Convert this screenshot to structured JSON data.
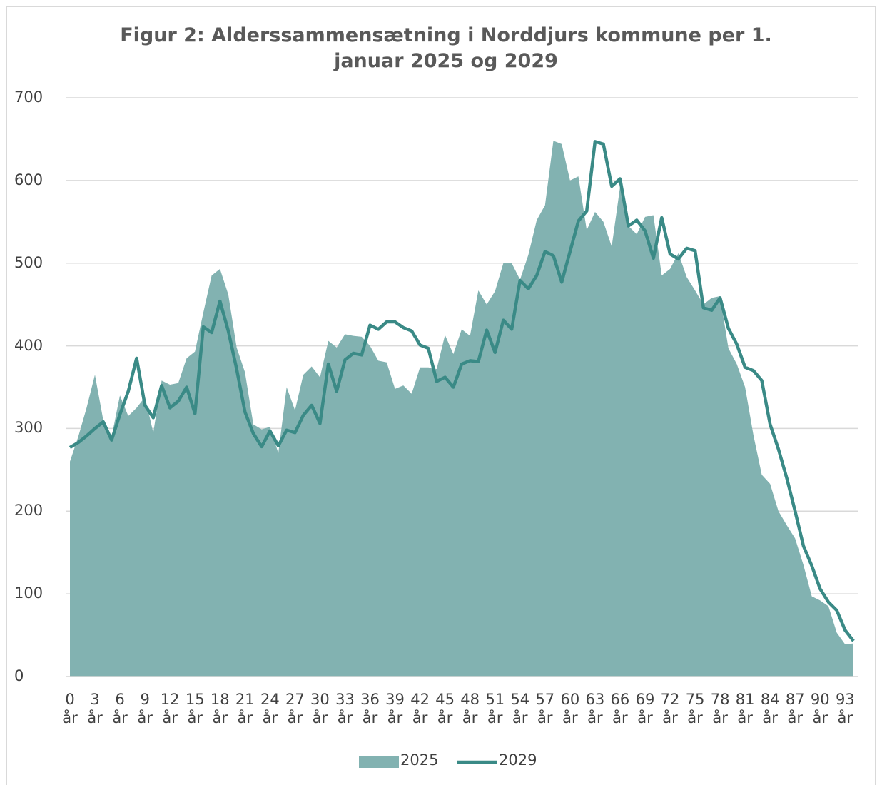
{
  "chart_data": {
    "type": "area-line",
    "title": "Figur 2: Alderssammensætning i Norddjurs kommune per 1. januar 2025 og 2029",
    "categories": [
      "0 år",
      null,
      null,
      "3 år",
      null,
      null,
      "6 år",
      null,
      null,
      "9 år",
      null,
      null,
      "12 år",
      null,
      null,
      "15 år",
      null,
      null,
      "18 år",
      null,
      null,
      "21 år",
      null,
      null,
      "24 år",
      null,
      null,
      "27 år",
      null,
      null,
      "30 år",
      null,
      null,
      "33 år",
      null,
      null,
      "36 år",
      null,
      null,
      "39 år",
      null,
      null,
      "42 år",
      null,
      null,
      "45 år",
      null,
      null,
      "48 år",
      null,
      null,
      "51 år",
      null,
      null,
      "54 år",
      null,
      null,
      "57 år",
      null,
      null,
      "60 år",
      null,
      null,
      "63 år",
      null,
      null,
      "66 år",
      null,
      null,
      "69 år",
      null,
      null,
      "72 år",
      null,
      null,
      "75 år",
      null,
      null,
      "78 år",
      null,
      null,
      "81 år",
      null,
      null,
      "84 år",
      null,
      null,
      "87 år",
      null,
      null,
      "90 år",
      null,
      null,
      "93 år",
      null
    ],
    "series": [
      {
        "name": "2025",
        "kind": "area",
        "color": "#82b2b1",
        "values": [
          260,
          290,
          325,
          365,
          310,
          290,
          340,
          315,
          325,
          338,
          295,
          358,
          353,
          355,
          385,
          393,
          440,
          485,
          493,
          462,
          398,
          368,
          305,
          299,
          302,
          270,
          350,
          322,
          365,
          375,
          362,
          406,
          398,
          414,
          412,
          411,
          400,
          382,
          380,
          348,
          352,
          342,
          374,
          374,
          372,
          413,
          390,
          420,
          412,
          467,
          450,
          466,
          500,
          500,
          480,
          510,
          552,
          570,
          648,
          644,
          600,
          605,
          540,
          562,
          550,
          520,
          592,
          545,
          535,
          556,
          558,
          485,
          493,
          512,
          483,
          467,
          450,
          458,
          460,
          397,
          378,
          350,
          292,
          244,
          233,
          200,
          183,
          167,
          135,
          97,
          92,
          85,
          53,
          39,
          40
        ]
      },
      {
        "name": "2029",
        "kind": "line",
        "color": "#3a8a86",
        "values": [
          277,
          283,
          291,
          300,
          308,
          286,
          317,
          345,
          385,
          328,
          313,
          352,
          325,
          333,
          350,
          318,
          423,
          416,
          454,
          418,
          372,
          320,
          294,
          278,
          297,
          279,
          298,
          295,
          316,
          328,
          306,
          378,
          345,
          383,
          391,
          389,
          425,
          420,
          429,
          429,
          422,
          418,
          401,
          397,
          357,
          362,
          350,
          378,
          382,
          381,
          419,
          392,
          431,
          420,
          479,
          469,
          485,
          514,
          509,
          477,
          514,
          551,
          563,
          647,
          644,
          593,
          602,
          545,
          552,
          539,
          506,
          555,
          511,
          505,
          518,
          515,
          446,
          443,
          458,
          421,
          402,
          374,
          370,
          358,
          305,
          275,
          240,
          200,
          158,
          134,
          106,
          90,
          80,
          56,
          43
        ]
      }
    ],
    "ylim": [
      0,
      700
    ],
    "yticks": [
      0,
      100,
      200,
      300,
      400,
      500,
      600,
      700
    ],
    "grid": true,
    "legend": "bottom"
  }
}
